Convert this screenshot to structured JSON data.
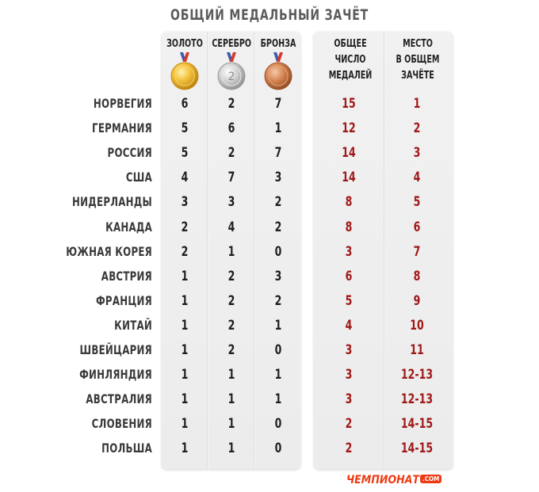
{
  "title": "ОБЩИЙ МЕДАЛЬНЫЙ ЗАЧЁТ",
  "headers": {
    "gold": "ЗОЛОТО",
    "silver": "СЕРЕБРО",
    "bronze": "БРОНЗА",
    "total": [
      "ОБЩЕЕ",
      "ЧИСЛО",
      "МЕДАЛЕЙ"
    ],
    "place": [
      "МЕСТО",
      "В ОБЩЕМ",
      "ЗАЧЁТЕ"
    ]
  },
  "medal_icons": [
    "gold-medal-icon",
    "silver-medal-icon",
    "bronze-medal-icon"
  ],
  "silver_medal_number": "2",
  "colors": {
    "gold": "#e8a81a",
    "silver": "#b9b9b9",
    "bronze": "#c46a3a",
    "value_red": "#a01818",
    "brand": "#ee3a12"
  },
  "logo": {
    "text": "ЧЕМПИОНАТ",
    "suffix": ".COM"
  },
  "chart_data": {
    "type": "table",
    "title": "ОБЩИЙ МЕДАЛЬНЫЙ ЗАЧЁТ",
    "columns": [
      "ЗОЛОТО",
      "СЕРЕБРО",
      "БРОНЗА",
      "ОБЩЕЕ ЧИСЛО МЕДАЛЕЙ",
      "МЕСТО В ОБЩЕМ ЗАЧЁТЕ"
    ],
    "rows": [
      {
        "country": "НОРВЕГИЯ",
        "gold": "6",
        "silver": "2",
        "bronze": "7",
        "total": "15",
        "place": "1"
      },
      {
        "country": "ГЕРМАНИЯ",
        "gold": "5",
        "silver": "6",
        "bronze": "1",
        "total": "12",
        "place": "2"
      },
      {
        "country": "РОССИЯ",
        "gold": "5",
        "silver": "2",
        "bronze": "7",
        "total": "14",
        "place": "3"
      },
      {
        "country": "США",
        "gold": "4",
        "silver": "7",
        "bronze": "3",
        "total": "14",
        "place": "4"
      },
      {
        "country": "НИДЕРЛАНДЫ",
        "gold": "3",
        "silver": "3",
        "bronze": "2",
        "total": "8",
        "place": "5"
      },
      {
        "country": "КАНАДА",
        "gold": "2",
        "silver": "4",
        "bronze": "2",
        "total": "8",
        "place": "6"
      },
      {
        "country": "ЮЖНАЯ КОРЕЯ",
        "gold": "2",
        "silver": "1",
        "bronze": "0",
        "total": "3",
        "place": "7"
      },
      {
        "country": "АВСТРИЯ",
        "gold": "1",
        "silver": "2",
        "bronze": "3",
        "total": "6",
        "place": "8"
      },
      {
        "country": "ФРАНЦИЯ",
        "gold": "1",
        "silver": "2",
        "bronze": "2",
        "total": "5",
        "place": "9"
      },
      {
        "country": "КИТАЙ",
        "gold": "1",
        "silver": "2",
        "bronze": "1",
        "total": "4",
        "place": "10"
      },
      {
        "country": "ШВЕЙЦАРИЯ",
        "gold": "1",
        "silver": "2",
        "bronze": "0",
        "total": "3",
        "place": "11"
      },
      {
        "country": "ФИНЛЯНДИЯ",
        "gold": "1",
        "silver": "1",
        "bronze": "1",
        "total": "3",
        "place": "12-13"
      },
      {
        "country": "АВСТРАЛИЯ",
        "gold": "1",
        "silver": "1",
        "bronze": "1",
        "total": "3",
        "place": "12-13"
      },
      {
        "country": "СЛОВЕНИЯ",
        "gold": "1",
        "silver": "1",
        "bronze": "0",
        "total": "2",
        "place": "14-15"
      },
      {
        "country": "ПОЛЬША",
        "gold": "1",
        "silver": "1",
        "bronze": "0",
        "total": "2",
        "place": "14-15"
      }
    ]
  }
}
